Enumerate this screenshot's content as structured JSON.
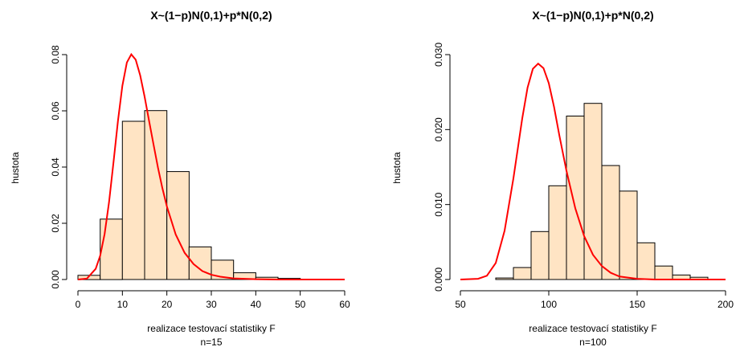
{
  "chart_data": [
    {
      "type": "bar",
      "title": "X~(1−p)N(0,1)+p*N(0,2)",
      "xlabel": "realizace testovací statistiky F",
      "sublabel": "n=15",
      "ylabel": "hustota",
      "xlim": [
        0,
        60
      ],
      "ylim": [
        0,
        0.08
      ],
      "xticks": [
        0,
        10,
        20,
        30,
        40,
        50,
        60
      ],
      "yticks": [
        0.0,
        0.02,
        0.04,
        0.06,
        0.08
      ],
      "ytick_labels": [
        "0.00",
        "0.02",
        "0.04",
        "0.06",
        "0.08"
      ],
      "bins": [
        {
          "x0": 0,
          "x1": 5,
          "value": 0.0015
        },
        {
          "x0": 5,
          "x1": 10,
          "value": 0.0215
        },
        {
          "x0": 10,
          "x1": 15,
          "value": 0.0563
        },
        {
          "x0": 15,
          "x1": 20,
          "value": 0.0601
        },
        {
          "x0": 20,
          "x1": 25,
          "value": 0.0384
        },
        {
          "x0": 25,
          "x1": 30,
          "value": 0.0116
        },
        {
          "x0": 30,
          "x1": 35,
          "value": 0.0069
        },
        {
          "x0": 35,
          "x1": 40,
          "value": 0.0024
        },
        {
          "x0": 40,
          "x1": 45,
          "value": 0.0008
        },
        {
          "x0": 45,
          "x1": 50,
          "value": 0.0004
        }
      ],
      "curve": {
        "x": [
          0,
          2,
          4,
          5,
          6,
          7,
          8,
          9,
          10,
          11,
          12,
          13,
          14,
          15,
          16,
          17,
          18,
          19,
          20,
          22,
          24,
          26,
          28,
          30,
          32,
          35,
          40,
          45,
          50,
          55,
          60
        ],
        "y": [
          0.0,
          0.0003,
          0.0038,
          0.0085,
          0.0162,
          0.0275,
          0.0418,
          0.0564,
          0.0689,
          0.0772,
          0.0801,
          0.0782,
          0.0726,
          0.065,
          0.0565,
          0.048,
          0.0398,
          0.0325,
          0.026,
          0.016,
          0.0095,
          0.0055,
          0.003,
          0.0017,
          0.001,
          0.0004,
          0.0001,
          0.0,
          0.0,
          0.0,
          0.0
        ],
        "color": "#FF0000"
      },
      "bar_color": "#FFE4C4"
    },
    {
      "type": "bar",
      "title": "X~(1−p)N(0,1)+p*N(0,2)",
      "xlabel": "realizace testovací statistiky F",
      "sublabel": "n=100",
      "ylabel": "hustota",
      "xlim": [
        50,
        200
      ],
      "ylim": [
        0,
        0.03
      ],
      "xticks": [
        50,
        100,
        150,
        200
      ],
      "yticks": [
        0.0,
        0.01,
        0.02,
        0.03
      ],
      "ytick_labels": [
        "0.000",
        "0.010",
        "0.020",
        "0.030"
      ],
      "bins": [
        {
          "x0": 70,
          "x1": 80,
          "value": 0.0002
        },
        {
          "x0": 80,
          "x1": 90,
          "value": 0.0016
        },
        {
          "x0": 90,
          "x1": 100,
          "value": 0.0064
        },
        {
          "x0": 100,
          "x1": 110,
          "value": 0.0125
        },
        {
          "x0": 110,
          "x1": 120,
          "value": 0.0218
        },
        {
          "x0": 120,
          "x1": 130,
          "value": 0.0235
        },
        {
          "x0": 130,
          "x1": 140,
          "value": 0.0152
        },
        {
          "x0": 140,
          "x1": 150,
          "value": 0.0118
        },
        {
          "x0": 150,
          "x1": 160,
          "value": 0.0049
        },
        {
          "x0": 160,
          "x1": 170,
          "value": 0.0018
        },
        {
          "x0": 170,
          "x1": 180,
          "value": 0.0006
        },
        {
          "x0": 180,
          "x1": 190,
          "value": 0.0003
        }
      ],
      "curve": {
        "x": [
          50,
          60,
          65,
          70,
          75,
          80,
          85,
          88,
          91,
          94,
          97,
          100,
          103,
          106,
          110,
          115,
          120,
          125,
          130,
          135,
          140,
          150,
          160,
          170,
          180,
          190,
          200
        ],
        "y": [
          0.0,
          0.0001,
          0.0005,
          0.0022,
          0.0065,
          0.0135,
          0.0215,
          0.0256,
          0.0281,
          0.0288,
          0.0282,
          0.0262,
          0.023,
          0.0192,
          0.0145,
          0.0095,
          0.0058,
          0.0033,
          0.0018,
          0.0009,
          0.0004,
          0.0001,
          0.0,
          0.0,
          0.0,
          0.0,
          0.0
        ],
        "color": "#FF0000"
      },
      "bar_color": "#FFE4C4"
    }
  ]
}
